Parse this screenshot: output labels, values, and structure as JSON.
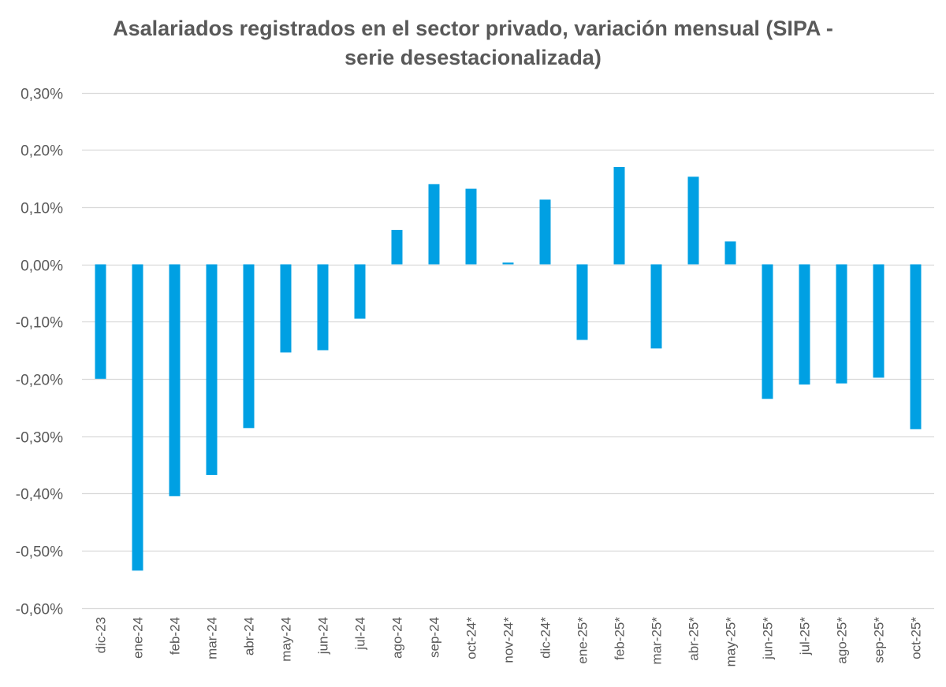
{
  "chart_data": {
    "type": "bar",
    "title_lines": [
      "Asalariados registrados en el sector privado, variación mensual (SIPA -",
      "serie desestacionalizada)"
    ],
    "xlabel": "",
    "ylabel": "",
    "ylim": [
      -0.6,
      0.3
    ],
    "yticks": [
      0.3,
      0.2,
      0.1,
      0.0,
      -0.1,
      -0.2,
      -0.3,
      -0.4,
      -0.5,
      -0.6
    ],
    "ytick_labels": [
      "0,30%",
      "0,20%",
      "0,10%",
      "0,00%",
      "-0,10%",
      "-0,20%",
      "-0,30%",
      "-0,40%",
      "-0,50%",
      "-0,60%"
    ],
    "categories": [
      "dic-23",
      "ene-24",
      "feb-24",
      "mar-24",
      "abr-24",
      "may-24",
      "jun-24",
      "jul-24",
      "ago-24",
      "sep-24",
      "oct-24*",
      "nov-24*",
      "dic-24*",
      "ene-25*",
      "feb-25*",
      "mar-25*",
      "abr-25*",
      "may-25*",
      "jun-25*",
      "jul-25*",
      "ago-25*",
      "sep-25*",
      "oct-25*"
    ],
    "values": [
      -0.2,
      -0.535,
      -0.405,
      -0.368,
      -0.286,
      -0.154,
      -0.15,
      -0.095,
      0.06,
      0.14,
      0.132,
      0.003,
      0.113,
      -0.132,
      0.17,
      -0.147,
      0.153,
      0.04,
      -0.235,
      -0.21,
      -0.208,
      -0.198,
      -0.288
    ],
    "grid": true,
    "legend": "none",
    "bar_color": "#00A0E3",
    "grid_color": "#D9D9D9",
    "text_color": "#595959"
  }
}
